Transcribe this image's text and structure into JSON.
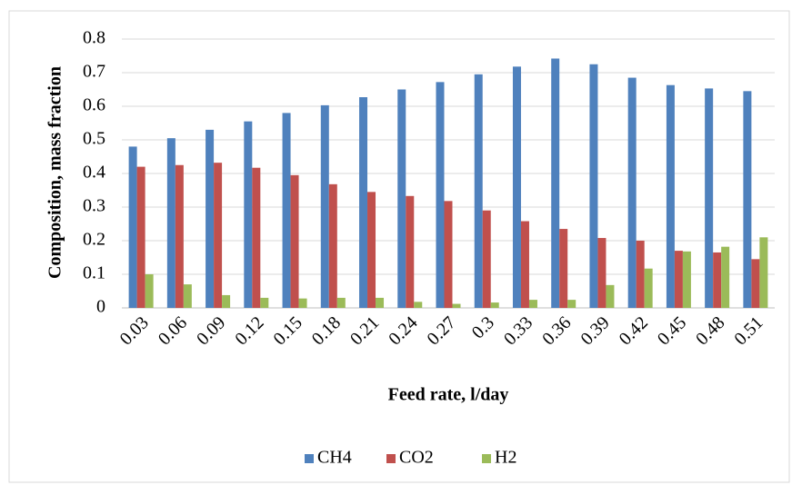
{
  "chart_data": {
    "type": "bar",
    "xlabel": "Feed rate, l/day",
    "ylabel": "Composition, mass fraction",
    "categories": [
      "0.03",
      "0.06",
      "0.09",
      "0.12",
      "0.15",
      "0.18",
      "0.21",
      "0.24",
      "0.27",
      "0.3",
      "0.33",
      "0.36",
      "0.39",
      "0.42",
      "0.45",
      "0.48",
      "0.51"
    ],
    "series": [
      {
        "name": "CH4",
        "color": "#4f81bd",
        "values": [
          0.48,
          0.505,
          0.53,
          0.555,
          0.58,
          0.603,
          0.627,
          0.65,
          0.672,
          0.695,
          0.718,
          0.742,
          0.725,
          0.685,
          0.663,
          0.653,
          0.645
        ]
      },
      {
        "name": "CO2",
        "color": "#c0504d",
        "values": [
          0.42,
          0.425,
          0.432,
          0.417,
          0.395,
          0.368,
          0.345,
          0.333,
          0.318,
          0.29,
          0.258,
          0.235,
          0.208,
          0.2,
          0.17,
          0.165,
          0.145
        ]
      },
      {
        "name": "H2",
        "color": "#9bbb59",
        "values": [
          0.1,
          0.07,
          0.038,
          0.03,
          0.028,
          0.03,
          0.03,
          0.018,
          0.012,
          0.016,
          0.024,
          0.024,
          0.068,
          0.117,
          0.168,
          0.182,
          0.21
        ]
      }
    ],
    "ylim": [
      0,
      0.8
    ],
    "yticks": [
      0,
      0.1,
      0.2,
      0.3,
      0.4,
      0.5,
      0.6,
      0.7,
      0.8
    ],
    "grid": true,
    "legend": "bottom"
  }
}
